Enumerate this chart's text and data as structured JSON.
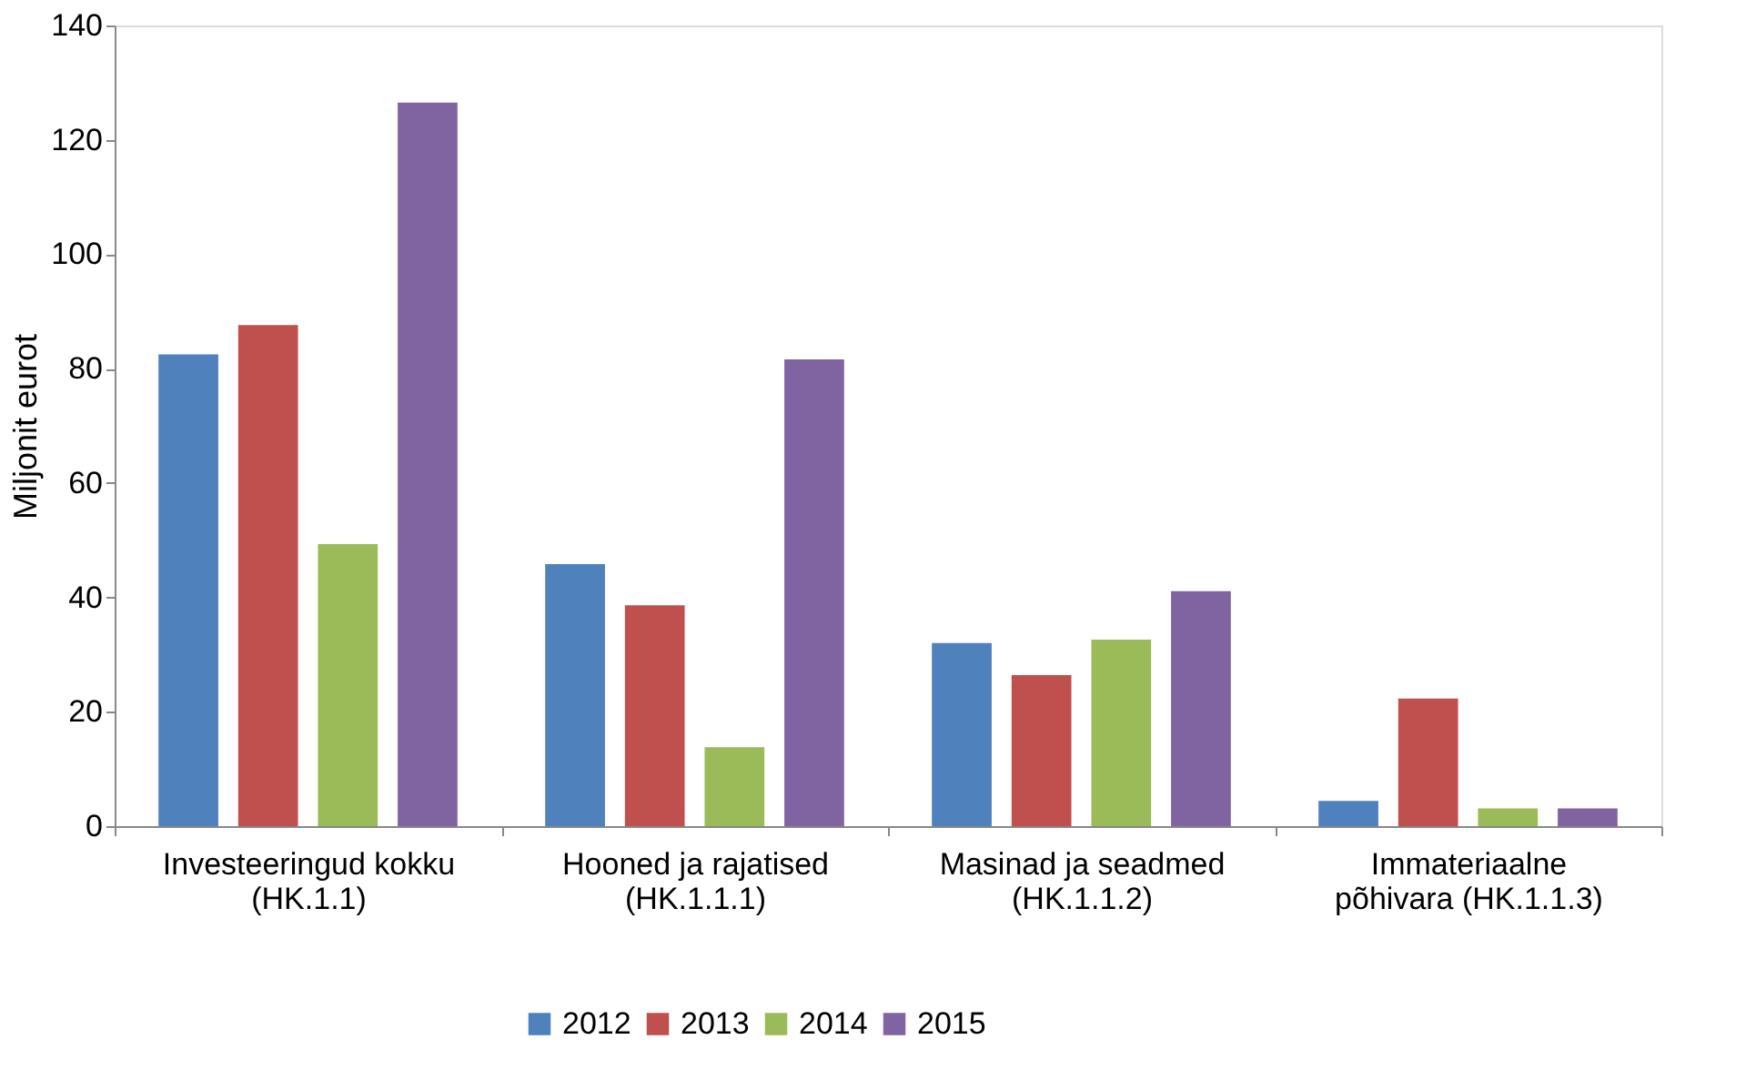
{
  "chart_data": {
    "type": "bar",
    "ylabel": "Miljonit eurot",
    "categories": [
      "Investeeringud kokku\n(HK.1.1)",
      "Hooned ja rajatised\n(HK.1.1.1)",
      "Masinad ja seadmed\n(HK.1.1.2)",
      "Immateriaalne\npõhivara (HK.1.1.3)"
    ],
    "series": [
      {
        "name": "2012",
        "color": "#4f81bd",
        "values": [
          82.5,
          45.8,
          32,
          4.4
        ]
      },
      {
        "name": "2013",
        "color": "#c0504d",
        "values": [
          87.6,
          38.6,
          26.4,
          22.3
        ]
      },
      {
        "name": "2014",
        "color": "#9bbb59",
        "values": [
          49.3,
          13.8,
          32.6,
          3.1
        ]
      },
      {
        "name": "2015",
        "color": "#8064a2",
        "values": [
          126.5,
          81.6,
          41.1,
          3.1
        ]
      }
    ],
    "ylim": [
      0,
      140
    ],
    "yticks": [
      0,
      20,
      40,
      60,
      80,
      100,
      120,
      140
    ],
    "grid": false,
    "legend": "bottom"
  }
}
